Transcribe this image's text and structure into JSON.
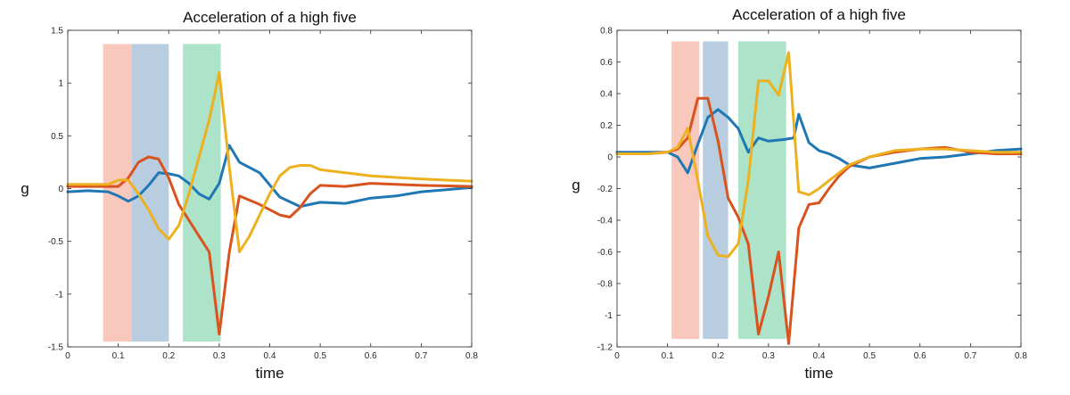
{
  "colors": {
    "blue": "#1f77b4",
    "orange": "#d9531e",
    "yellow": "#edb120",
    "band_red": "#f4a48f",
    "band_blue": "#8aaccb",
    "band_green": "#74d1a5",
    "axis": "#262626"
  },
  "chart_data": [
    {
      "type": "line",
      "title": "Acceleration of a high five",
      "xlabel": "time",
      "ylabel": "g",
      "xlim": [
        0,
        0.8
      ],
      "ylim": [
        -1.5,
        1.5
      ],
      "xticks": [
        0,
        0.1,
        0.2,
        0.3,
        0.4,
        0.5,
        0.6,
        0.7,
        0.8
      ],
      "xtick_labels": [
        "0",
        "0.1",
        "0.2",
        "0.3",
        "0.4",
        "0.5",
        "0.6",
        "0.7",
        "0.8"
      ],
      "yticks": [
        -1.5,
        -1,
        -0.5,
        0,
        0.5,
        1,
        1.5
      ],
      "ytick_labels": [
        "-1.5",
        "-1",
        "-0.5",
        "0",
        "0.5",
        "1",
        "1.5"
      ],
      "grid": false,
      "bands": [
        {
          "x0": 0.07,
          "x1": 0.127,
          "y0": -1.45,
          "y1": 1.37,
          "color": "band_red"
        },
        {
          "x0": 0.127,
          "x1": 0.2,
          "y0": -1.45,
          "y1": 1.37,
          "color": "band_blue"
        },
        {
          "x0": 0.228,
          "x1": 0.303,
          "y0": -1.45,
          "y1": 1.37,
          "color": "band_green"
        }
      ],
      "series": [
        {
          "color": "blue",
          "x": [
            0,
            0.04,
            0.08,
            0.1,
            0.12,
            0.14,
            0.16,
            0.18,
            0.2,
            0.22,
            0.24,
            0.26,
            0.28,
            0.3,
            0.32,
            0.34,
            0.38,
            0.42,
            0.46,
            0.5,
            0.55,
            0.6,
            0.65,
            0.7,
            0.75,
            0.8
          ],
          "y": [
            -0.03,
            -0.02,
            -0.03,
            -0.07,
            -0.12,
            -0.07,
            0.03,
            0.15,
            0.14,
            0.12,
            0.05,
            -0.05,
            -0.1,
            0.05,
            0.41,
            0.25,
            0.15,
            -0.08,
            -0.17,
            -0.13,
            -0.14,
            -0.09,
            -0.07,
            -0.03,
            -0.01,
            0.01
          ]
        },
        {
          "color": "orange",
          "x": [
            0,
            0.04,
            0.08,
            0.1,
            0.12,
            0.14,
            0.16,
            0.18,
            0.2,
            0.22,
            0.24,
            0.26,
            0.28,
            0.3,
            0.32,
            0.34,
            0.38,
            0.42,
            0.44,
            0.46,
            0.48,
            0.5,
            0.55,
            0.6,
            0.7,
            0.8
          ],
          "y": [
            0.02,
            0.02,
            0.02,
            0.02,
            0.1,
            0.25,
            0.3,
            0.28,
            0.1,
            -0.15,
            -0.3,
            -0.45,
            -0.6,
            -1.38,
            -0.6,
            -0.07,
            -0.15,
            -0.25,
            -0.27,
            -0.18,
            -0.05,
            0.03,
            0.02,
            0.05,
            0.03,
            0.02
          ]
        },
        {
          "color": "yellow",
          "x": [
            0,
            0.04,
            0.08,
            0.1,
            0.12,
            0.14,
            0.16,
            0.18,
            0.2,
            0.22,
            0.24,
            0.26,
            0.28,
            0.3,
            0.32,
            0.34,
            0.36,
            0.38,
            0.4,
            0.42,
            0.44,
            0.46,
            0.48,
            0.5,
            0.55,
            0.6,
            0.7,
            0.8
          ],
          "y": [
            0.04,
            0.04,
            0.04,
            0.08,
            0.08,
            -0.05,
            -0.2,
            -0.38,
            -0.48,
            -0.35,
            -0.05,
            0.3,
            0.65,
            1.1,
            0.2,
            -0.6,
            -0.45,
            -0.25,
            -0.05,
            0.12,
            0.2,
            0.22,
            0.22,
            0.18,
            0.15,
            0.12,
            0.09,
            0.07
          ]
        }
      ]
    },
    {
      "type": "line",
      "title": "Acceleration of a high five",
      "xlabel": "time",
      "ylabel": "g",
      "xlim": [
        0,
        0.8
      ],
      "ylim": [
        -1.2,
        0.8
      ],
      "xticks": [
        0,
        0.1,
        0.2,
        0.3,
        0.4,
        0.5,
        0.6,
        0.7,
        0.8
      ],
      "xtick_labels": [
        "0",
        "0.1",
        "0.2",
        "0.3",
        "0.4",
        "0.5",
        "0.6",
        "0.7",
        "0.8"
      ],
      "yticks": [
        -1.2,
        -1,
        -0.8,
        -0.6,
        -0.4,
        -0.2,
        0,
        0.2,
        0.4,
        0.6,
        0.8
      ],
      "ytick_labels": [
        "-1.2",
        "-1",
        "-0.8",
        "-0.6",
        "-0.4",
        "-0.2",
        "0",
        "0.2",
        "0.4",
        "0.6",
        "0.8"
      ],
      "grid": false,
      "bands": [
        {
          "x0": 0.108,
          "x1": 0.163,
          "y0": -1.15,
          "y1": 0.73,
          "color": "band_red"
        },
        {
          "x0": 0.17,
          "x1": 0.22,
          "y0": -1.15,
          "y1": 0.73,
          "color": "band_blue"
        },
        {
          "x0": 0.24,
          "x1": 0.335,
          "y0": -1.15,
          "y1": 0.73,
          "color": "band_green"
        }
      ],
      "series": [
        {
          "color": "blue",
          "x": [
            0,
            0.06,
            0.1,
            0.12,
            0.14,
            0.16,
            0.18,
            0.2,
            0.22,
            0.24,
            0.26,
            0.28,
            0.3,
            0.33,
            0.35,
            0.36,
            0.38,
            0.4,
            0.42,
            0.44,
            0.46,
            0.5,
            0.55,
            0.6,
            0.65,
            0.7,
            0.75,
            0.8
          ],
          "y": [
            0.03,
            0.03,
            0.03,
            0.0,
            -0.1,
            0.08,
            0.25,
            0.3,
            0.25,
            0.18,
            0.03,
            0.12,
            0.1,
            0.11,
            0.12,
            0.27,
            0.09,
            0.04,
            0.02,
            -0.01,
            -0.05,
            -0.07,
            -0.04,
            -0.01,
            0.0,
            0.02,
            0.04,
            0.05
          ]
        },
        {
          "color": "orange",
          "x": [
            0,
            0.06,
            0.1,
            0.12,
            0.14,
            0.16,
            0.18,
            0.2,
            0.22,
            0.24,
            0.26,
            0.28,
            0.3,
            0.32,
            0.34,
            0.36,
            0.38,
            0.4,
            0.42,
            0.44,
            0.46,
            0.5,
            0.55,
            0.6,
            0.65,
            0.7,
            0.75,
            0.8
          ],
          "y": [
            0.02,
            0.02,
            0.03,
            0.05,
            0.12,
            0.37,
            0.37,
            0.1,
            -0.26,
            -0.38,
            -0.55,
            -1.12,
            -0.88,
            -0.6,
            -1.18,
            -0.45,
            -0.3,
            -0.29,
            -0.2,
            -0.12,
            -0.06,
            0.0,
            0.03,
            0.05,
            0.06,
            0.03,
            0.02,
            0.02
          ]
        },
        {
          "color": "yellow",
          "x": [
            0,
            0.06,
            0.1,
            0.12,
            0.14,
            0.16,
            0.18,
            0.2,
            0.22,
            0.24,
            0.26,
            0.28,
            0.3,
            0.32,
            0.34,
            0.36,
            0.38,
            0.4,
            0.42,
            0.44,
            0.46,
            0.5,
            0.55,
            0.6,
            0.65,
            0.7,
            0.75,
            0.8
          ],
          "y": [
            0.02,
            0.02,
            0.03,
            0.06,
            0.18,
            -0.15,
            -0.5,
            -0.62,
            -0.63,
            -0.55,
            -0.15,
            0.48,
            0.48,
            0.39,
            0.66,
            -0.22,
            -0.24,
            -0.2,
            -0.15,
            -0.1,
            -0.05,
            0.0,
            0.04,
            0.05,
            0.05,
            0.04,
            0.03,
            0.03
          ]
        }
      ]
    }
  ]
}
